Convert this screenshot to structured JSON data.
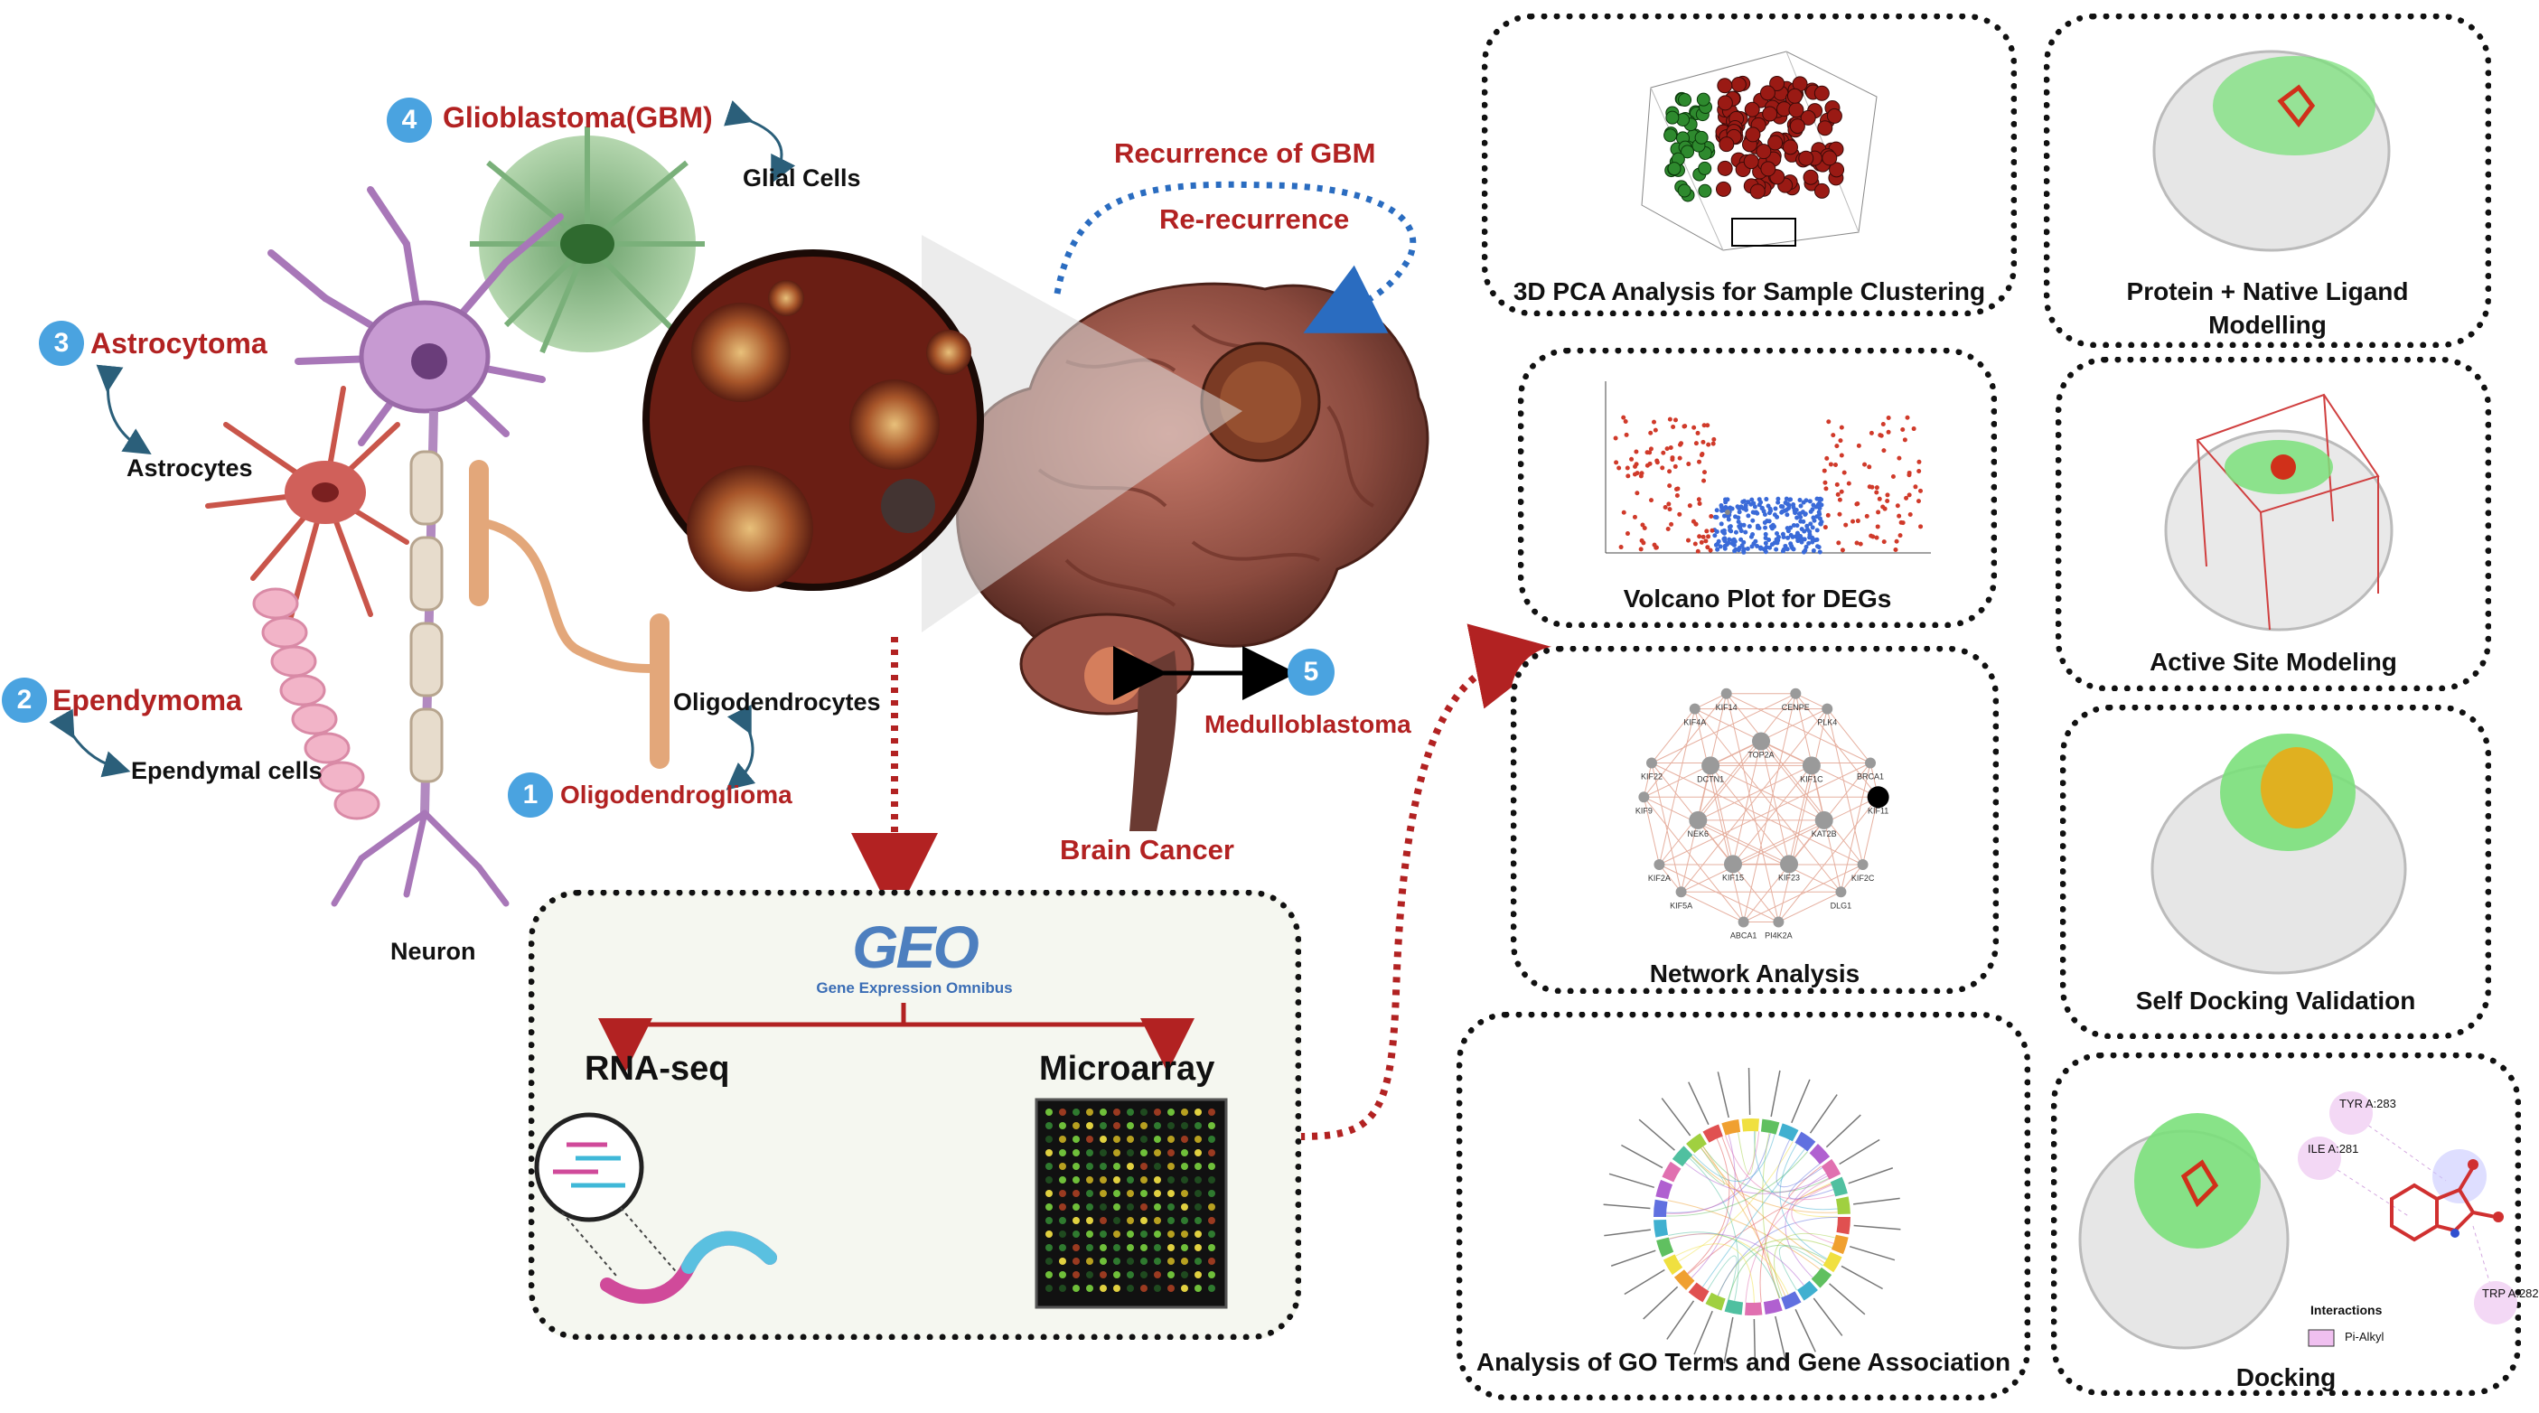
{
  "brain": {
    "cell_labels": {
      "glial_cells": "Glial Cells",
      "astrocytes": "Astrocytes",
      "ependymal_cells": "Ependymal cells",
      "oligodendrocytes": "Oligodendrocytes",
      "neuron": "Neuron"
    },
    "cancers": [
      {
        "number": "1",
        "name": "Oligodendroglioma"
      },
      {
        "number": "2",
        "name": "Ependymoma"
      },
      {
        "number": "3",
        "name": "Astrocytoma"
      },
      {
        "number": "4",
        "name": "Glioblastoma(GBM)"
      },
      {
        "number": "5",
        "name": "Medulloblastoma"
      }
    ],
    "recurrence": "Recurrence of GBM",
    "re_recurrence": "Re-recurrence",
    "brain_cancer": "Brain Cancer"
  },
  "geo": {
    "logo": "GEO",
    "logo_subtitle": "Gene Expression Omnibus",
    "rna_seq": "RNA-seq",
    "microarray": "Microarray"
  },
  "analysis_panels": {
    "pca": "3D PCA Analysis for Sample Clustering",
    "volcano": "Volcano Plot for DEGs",
    "network": "Network Analysis",
    "go_terms": "Analysis of GO Terms and Gene Association"
  },
  "modeling_panels": {
    "protein_ligand_line1": "Protein + Native Ligand",
    "protein_ligand_line2": "Modelling",
    "active_site": "Active Site Modeling",
    "self_docking": "Self Docking Validation",
    "docking": "Docking"
  },
  "network_genes": [
    "TOP2A",
    "CENPE",
    "PLK4",
    "KIF1C",
    "BRCA1",
    "KIF11",
    "KAT2B",
    "KIF2C",
    "DLG1",
    "KIF23",
    "PI4K2A",
    "ABCA1",
    "KIF15",
    "KIF5A",
    "KIF2A",
    "NEK6",
    "KIF9",
    "KIF22",
    "DCTN1",
    "KIF4A",
    "KIF14"
  ],
  "docking_residues": {
    "tyr": "TYR A:283",
    "ile": "ILE A:281",
    "trp": "TRP A:282",
    "interactions_title": "Interactions",
    "legend_item": "Pi-Alkyl"
  },
  "colors": {
    "cancer_red": "#b22222",
    "badge_blue": "#4aa3e0",
    "flow_red": "#b22222",
    "recurrence_blue": "#2a6cc0",
    "ligand_green": "#7be07b"
  }
}
